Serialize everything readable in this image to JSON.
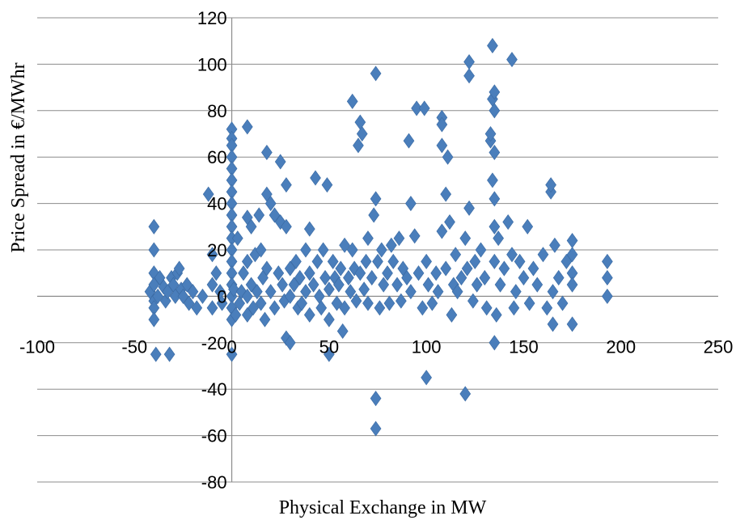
{
  "chart_data": {
    "type": "scatter",
    "xlabel": "Physical Exchange in MW",
    "ylabel": "Price Spread in €/MWhr",
    "xlim": [
      -100,
      250
    ],
    "ylim": [
      -80,
      120
    ],
    "x_ticks": [
      -100,
      -50,
      0,
      50,
      100,
      150,
      200,
      250
    ],
    "y_ticks": [
      -80,
      -60,
      -40,
      -20,
      0,
      20,
      40,
      60,
      80,
      100,
      120
    ],
    "grid": "horizontal",
    "legend": "none",
    "marker": "diamond",
    "color": "#4a7ebb",
    "series": [
      {
        "points": [
          [
            -42,
            2
          ],
          [
            -40,
            30
          ],
          [
            -40,
            20
          ],
          [
            -40,
            10
          ],
          [
            -40,
            5
          ],
          [
            -40,
            -2
          ],
          [
            -40,
            -5
          ],
          [
            -40,
            -10
          ],
          [
            -39,
            -25
          ],
          [
            -38,
            0
          ],
          [
            -37,
            8
          ],
          [
            -35,
            4
          ],
          [
            -34,
            -2
          ],
          [
            -33,
            2
          ],
          [
            -32,
            -25
          ],
          [
            -31,
            8
          ],
          [
            -30,
            5
          ],
          [
            -29,
            0
          ],
          [
            -28,
            10
          ],
          [
            -27,
            12
          ],
          [
            -26,
            3
          ],
          [
            -25,
            0
          ],
          [
            -23,
            5
          ],
          [
            -22,
            -3
          ],
          [
            -20,
            2
          ],
          [
            -18,
            -5
          ],
          [
            -15,
            0
          ],
          [
            -12,
            44
          ],
          [
            -10,
            18
          ],
          [
            -10,
            5
          ],
          [
            -10,
            -5
          ],
          [
            -8,
            10
          ],
          [
            -6,
            2
          ],
          [
            -5,
            -3
          ],
          [
            0,
            72
          ],
          [
            0,
            68
          ],
          [
            0,
            65
          ],
          [
            0,
            60
          ],
          [
            0,
            55
          ],
          [
            0,
            50
          ],
          [
            0,
            45
          ],
          [
            0,
            40
          ],
          [
            0,
            35
          ],
          [
            0,
            30
          ],
          [
            0,
            25
          ],
          [
            0,
            20
          ],
          [
            0,
            15
          ],
          [
            0,
            10
          ],
          [
            0,
            5
          ],
          [
            0,
            0
          ],
          [
            0,
            -5
          ],
          [
            0,
            -10
          ],
          [
            0,
            -25
          ],
          [
            1,
            3
          ],
          [
            2,
            -8
          ],
          [
            3,
            25
          ],
          [
            4,
            -3
          ],
          [
            5,
            2
          ],
          [
            6,
            10
          ],
          [
            8,
            73
          ],
          [
            8,
            34
          ],
          [
            8,
            15
          ],
          [
            8,
            0
          ],
          [
            8,
            -8
          ],
          [
            10,
            30
          ],
          [
            10,
            5
          ],
          [
            11,
            -5
          ],
          [
            12,
            18
          ],
          [
            13,
            2
          ],
          [
            14,
            35
          ],
          [
            15,
            20
          ],
          [
            15,
            -3
          ],
          [
            16,
            8
          ],
          [
            17,
            -10
          ],
          [
            18,
            62
          ],
          [
            18,
            44
          ],
          [
            18,
            12
          ],
          [
            20,
            40
          ],
          [
            20,
            2
          ],
          [
            22,
            35
          ],
          [
            22,
            -5
          ],
          [
            24,
            10
          ],
          [
            25,
            58
          ],
          [
            25,
            32
          ],
          [
            26,
            5
          ],
          [
            27,
            -2
          ],
          [
            28,
            30
          ],
          [
            28,
            48
          ],
          [
            28,
            -18
          ],
          [
            30,
            -20
          ],
          [
            30,
            12
          ],
          [
            30,
            0
          ],
          [
            32,
            5
          ],
          [
            33,
            15
          ],
          [
            34,
            -5
          ],
          [
            35,
            8
          ],
          [
            36,
            -3
          ],
          [
            38,
            20
          ],
          [
            38,
            2
          ],
          [
            40,
            29
          ],
          [
            40,
            10
          ],
          [
            40,
            -8
          ],
          [
            42,
            5
          ],
          [
            43,
            51
          ],
          [
            44,
            15
          ],
          [
            45,
            0
          ],
          [
            46,
            -5
          ],
          [
            47,
            20
          ],
          [
            48,
            8
          ],
          [
            49,
            48
          ],
          [
            50,
            -25
          ],
          [
            50,
            -10
          ],
          [
            50,
            3
          ],
          [
            52,
            15
          ],
          [
            53,
            8
          ],
          [
            54,
            -3
          ],
          [
            55,
            5
          ],
          [
            56,
            12
          ],
          [
            57,
            -15
          ],
          [
            58,
            22
          ],
          [
            58,
            -5
          ],
          [
            60,
            8
          ],
          [
            61,
            2
          ],
          [
            62,
            84
          ],
          [
            62,
            20
          ],
          [
            63,
            12
          ],
          [
            64,
            -2
          ],
          [
            65,
            65
          ],
          [
            66,
            75
          ],
          [
            66,
            10
          ],
          [
            67,
            70
          ],
          [
            68,
            3
          ],
          [
            69,
            15
          ],
          [
            70,
            -3
          ],
          [
            70,
            25
          ],
          [
            72,
            8
          ],
          [
            73,
            35
          ],
          [
            74,
            42
          ],
          [
            74,
            96
          ],
          [
            74,
            -44
          ],
          [
            74,
            -57
          ],
          [
            75,
            15
          ],
          [
            76,
            -5
          ],
          [
            77,
            20
          ],
          [
            78,
            5
          ],
          [
            80,
            10
          ],
          [
            81,
            -3
          ],
          [
            82,
            22
          ],
          [
            83,
            15
          ],
          [
            85,
            5
          ],
          [
            86,
            25
          ],
          [
            87,
            -2
          ],
          [
            88,
            12
          ],
          [
            90,
            8
          ],
          [
            91,
            67
          ],
          [
            92,
            40
          ],
          [
            92,
            2
          ],
          [
            94,
            26
          ],
          [
            95,
            81
          ],
          [
            96,
            10
          ],
          [
            98,
            -5
          ],
          [
            99,
            81
          ],
          [
            100,
            -35
          ],
          [
            100,
            15
          ],
          [
            101,
            5
          ],
          [
            103,
            -3
          ],
          [
            105,
            10
          ],
          [
            106,
            2
          ],
          [
            108,
            28
          ],
          [
            108,
            77
          ],
          [
            108,
            74
          ],
          [
            108,
            65
          ],
          [
            110,
            12
          ],
          [
            110,
            44
          ],
          [
            111,
            60
          ],
          [
            112,
            32
          ],
          [
            113,
            -8
          ],
          [
            114,
            5
          ],
          [
            115,
            18
          ],
          [
            116,
            2
          ],
          [
            118,
            8
          ],
          [
            120,
            25
          ],
          [
            120,
            -42
          ],
          [
            121,
            12
          ],
          [
            122,
            101
          ],
          [
            122,
            95
          ],
          [
            122,
            38
          ],
          [
            124,
            -2
          ],
          [
            125,
            15
          ],
          [
            126,
            5
          ],
          [
            128,
            20
          ],
          [
            130,
            8
          ],
          [
            131,
            -5
          ],
          [
            133,
            67
          ],
          [
            133,
            70
          ],
          [
            134,
            108
          ],
          [
            134,
            85
          ],
          [
            134,
            50
          ],
          [
            135,
            88
          ],
          [
            135,
            80
          ],
          [
            135,
            62
          ],
          [
            135,
            42
          ],
          [
            135,
            30
          ],
          [
            135,
            15
          ],
          [
            135,
            -20
          ],
          [
            136,
            -8
          ],
          [
            137,
            25
          ],
          [
            138,
            5
          ],
          [
            140,
            12
          ],
          [
            142,
            32
          ],
          [
            144,
            102
          ],
          [
            144,
            18
          ],
          [
            145,
            -5
          ],
          [
            146,
            2
          ],
          [
            148,
            15
          ],
          [
            150,
            8
          ],
          [
            152,
            30
          ],
          [
            153,
            -3
          ],
          [
            155,
            12
          ],
          [
            157,
            5
          ],
          [
            160,
            18
          ],
          [
            162,
            -5
          ],
          [
            164,
            45
          ],
          [
            164,
            48
          ],
          [
            165,
            2
          ],
          [
            165,
            -12
          ],
          [
            166,
            22
          ],
          [
            168,
            8
          ],
          [
            170,
            -3
          ],
          [
            172,
            15
          ],
          [
            175,
            24
          ],
          [
            175,
            18
          ],
          [
            175,
            10
          ],
          [
            175,
            5
          ],
          [
            175,
            -12
          ],
          [
            193,
            15
          ],
          [
            193,
            8
          ],
          [
            193,
            0
          ]
        ]
      }
    ]
  }
}
